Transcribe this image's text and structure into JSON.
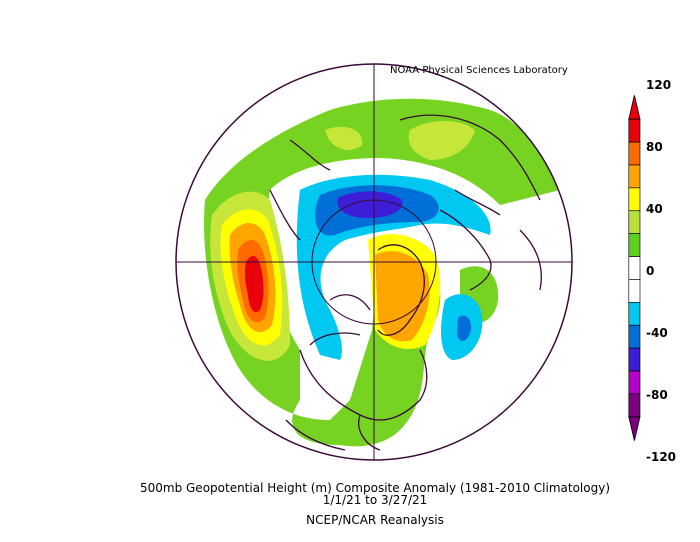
{
  "credit": "NOAA Physical Sciences Laboratory",
  "caption": {
    "line1": "500mb Geopotential Height (m) Composite Anomaly (1981-2010 Climatology)",
    "line2": "1/1/21  to 3/27/21",
    "line3": "NCEP/NCAR Reanalysis"
  },
  "colorbar": {
    "labels": [
      "120",
      "80",
      "40",
      "0",
      "-40",
      "-80",
      "-120"
    ],
    "colors": [
      "#e8000b",
      "#ff6a00",
      "#ffa500",
      "#ffff00",
      "#b7e03a",
      "#5cd21c",
      "#ffffff",
      "#ffffff",
      "#00c8f0",
      "#0070d8",
      "#3c1ed8",
      "#b400c8",
      "#7a0080"
    ]
  },
  "anomaly_colors": {
    "pos40": "#77d321",
    "pos60": "#c7e63a",
    "pos80": "#ffff00",
    "pos100": "#ffa500",
    "pos120": "#ff6a00",
    "pos140": "#e8000b",
    "neg40": "#00c8f0",
    "neg60": "#0070d8",
    "neg80": "#3c1ed8"
  }
}
